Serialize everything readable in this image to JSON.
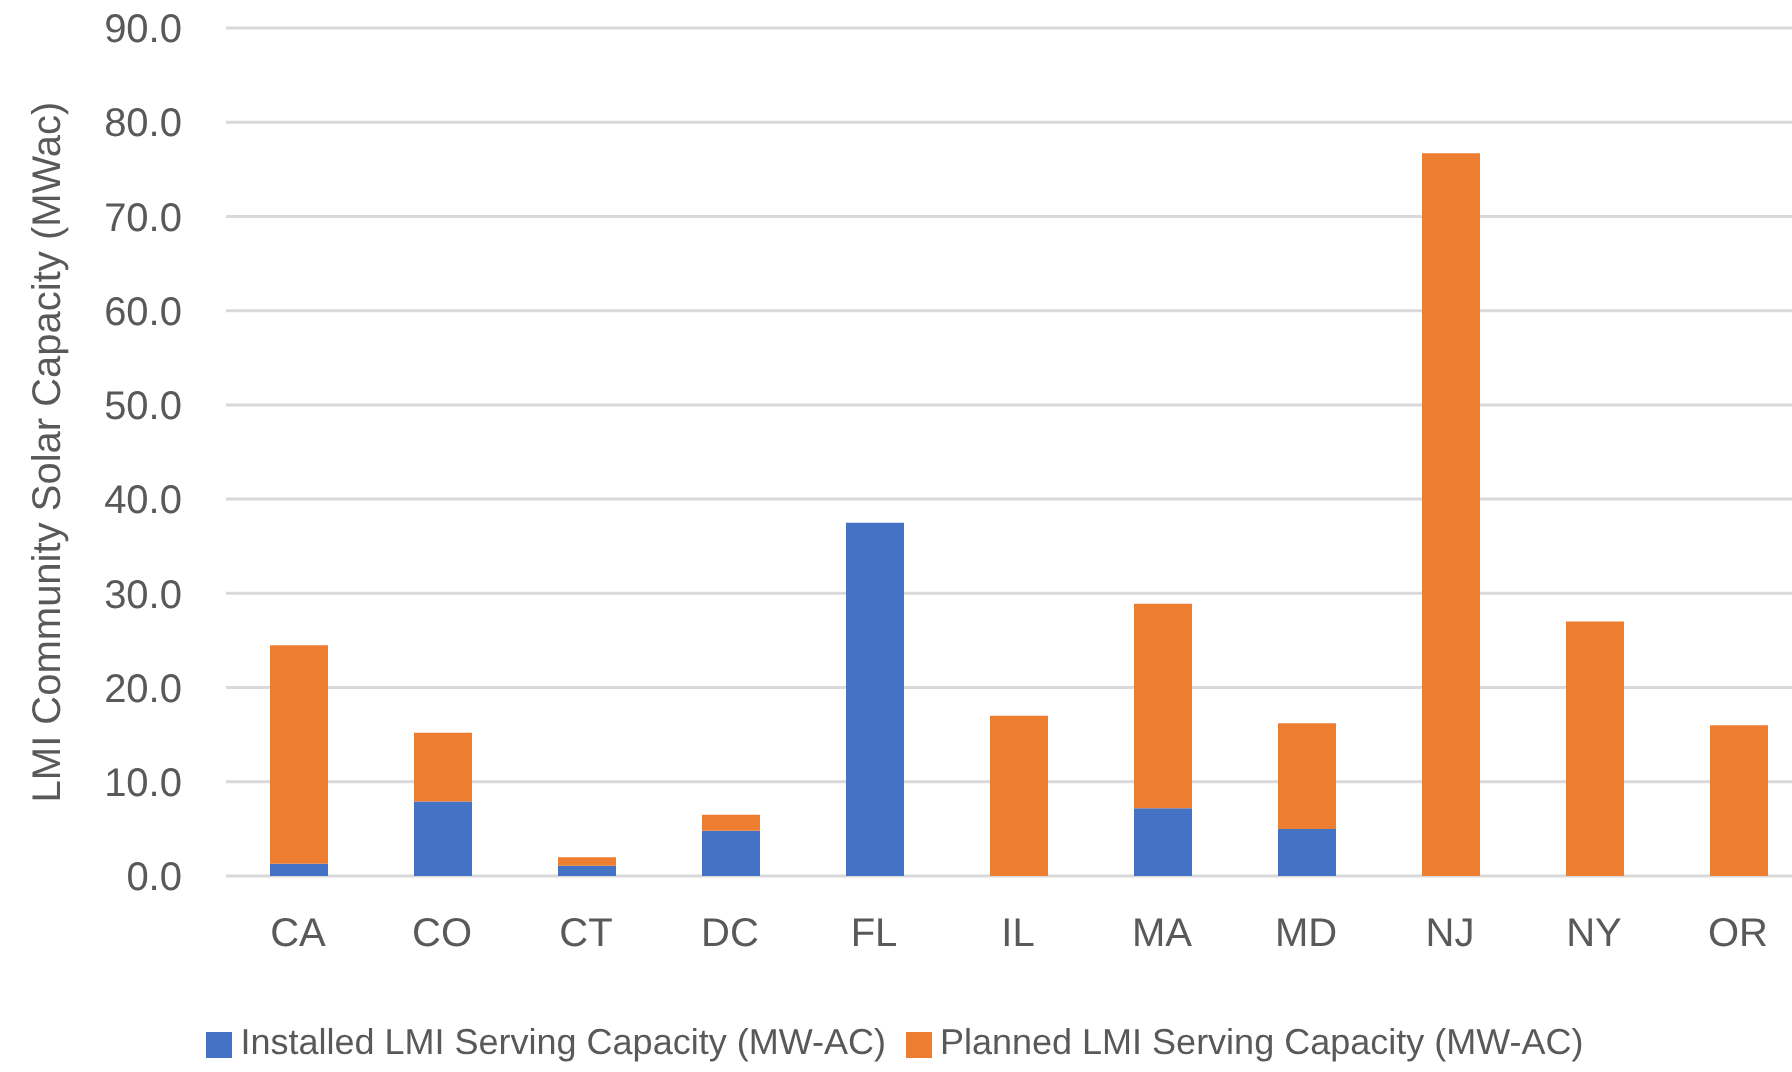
{
  "chart_data": {
    "type": "bar",
    "stacked": true,
    "ylabel": "LMI Community Solar Capacity (MWac)",
    "categories": [
      "CA",
      "CO",
      "CT",
      "DC",
      "FL",
      "IL",
      "MA",
      "MD",
      "NJ",
      "NY",
      "OR"
    ],
    "series": [
      {
        "name": "Installed LMI Serving Capacity (MW-AC)",
        "color": "#4472c4",
        "values": [
          1.3,
          7.9,
          1.1,
          4.8,
          37.5,
          0,
          7.2,
          5.0,
          0,
          0,
          0
        ]
      },
      {
        "name": "Planned LMI Serving Capacity (MW-AC)",
        "color": "#ed7d31",
        "values": [
          23.2,
          7.3,
          0.9,
          1.7,
          0,
          17.0,
          21.7,
          11.2,
          76.7,
          27.0,
          16.0
        ]
      }
    ],
    "ylim": [
      0,
      90
    ],
    "yticks": [
      {
        "value": 0,
        "label": "0.0"
      },
      {
        "value": 10,
        "label": "10.0"
      },
      {
        "value": 20,
        "label": "20.0"
      },
      {
        "value": 30,
        "label": "30.0"
      },
      {
        "value": 40,
        "label": "40.0"
      },
      {
        "value": 50,
        "label": "50.0"
      },
      {
        "value": 60,
        "label": "60.0"
      },
      {
        "value": 70,
        "label": "70.0"
      },
      {
        "value": 80,
        "label": "80.0"
      },
      {
        "value": 90,
        "label": "90.0"
      }
    ],
    "grid": "y",
    "legend": "bottom"
  }
}
